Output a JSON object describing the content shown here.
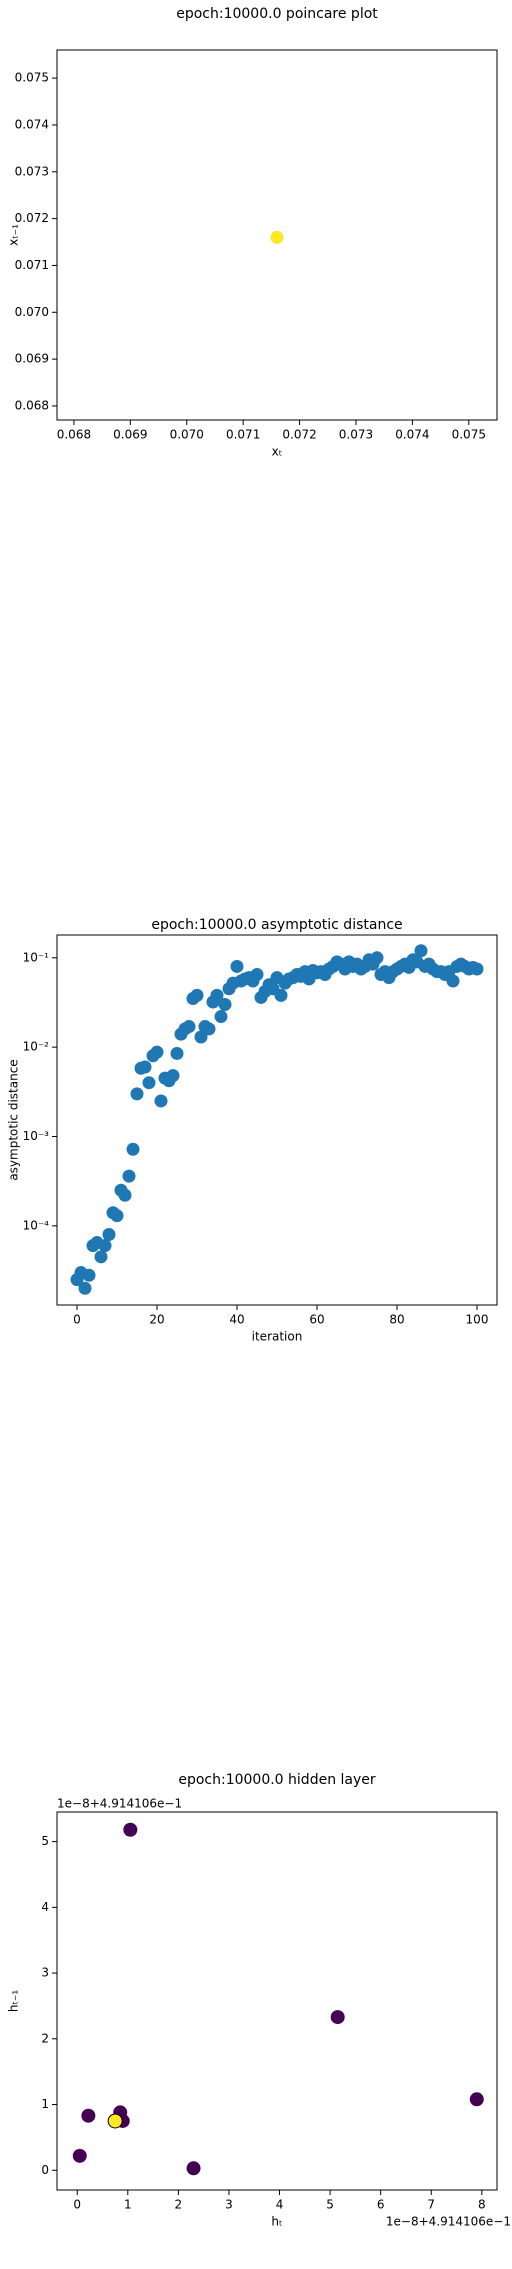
{
  "chart_data": [
    {
      "type": "scatter",
      "title": "epoch:10000.0 poincare plot",
      "x_label": "xₜ",
      "y_label": "xₜ₋₁",
      "x": [
        0.0716
      ],
      "y": [
        0.0716
      ],
      "color": "#fde725",
      "xlim": [
        0.0677,
        0.0755
      ],
      "ylim": [
        0.0677,
        0.0756
      ],
      "xticks": [
        0.068,
        0.069,
        {
          "value": 0.07,
          "label": "0.070"
        },
        0.071,
        0.072,
        0.073,
        0.074,
        0.075
      ],
      "yticks": [
        0.068,
        0.069,
        {
          "value": 0.07,
          "label": "0.070"
        },
        0.071,
        0.072,
        0.073,
        0.074,
        0.075
      ]
    },
    {
      "type": "scatter",
      "title": "epoch:10000.0 asymptotic distance",
      "x_label": "iteration",
      "y_label": "asymptotic distance",
      "log_y": true,
      "color": "#1f77b4",
      "x": [
        0,
        1,
        2,
        3,
        4,
        5,
        6,
        7,
        8,
        9,
        10,
        11,
        12,
        13,
        14,
        15,
        16,
        17,
        18,
        19,
        20,
        21,
        22,
        23,
        24,
        25,
        26,
        27,
        28,
        29,
        30,
        31,
        32,
        33,
        34,
        35,
        36,
        37,
        38,
        39,
        40,
        41,
        42,
        43,
        44,
        45,
        46,
        47,
        48,
        49,
        50,
        51,
        52,
        53,
        54,
        55,
        56,
        57,
        58,
        59,
        60,
        61,
        62,
        63,
        64,
        65,
        66,
        67,
        68,
        69,
        70,
        71,
        72,
        73,
        74,
        75,
        76,
        77,
        78,
        79,
        80,
        81,
        82,
        83,
        84,
        85,
        86,
        87,
        88,
        89,
        90,
        91,
        92,
        93,
        94,
        95,
        96,
        97,
        98,
        99,
        100
      ],
      "y": [
        2.5e-05,
        3e-05,
        2e-05,
        2.8e-05,
        6e-05,
        6.5e-05,
        4.5e-05,
        6e-05,
        8e-05,
        0.00014,
        0.00013,
        0.00025,
        0.00022,
        0.00036,
        0.00072,
        0.003,
        0.0058,
        0.006,
        0.004,
        0.008,
        0.0088,
        0.0025,
        0.0045,
        0.0042,
        0.0048,
        0.0085,
        0.014,
        0.016,
        0.017,
        0.035,
        0.038,
        0.013,
        0.017,
        0.016,
        0.032,
        0.038,
        0.022,
        0.03,
        0.045,
        0.052,
        0.08,
        0.055,
        0.058,
        0.06,
        0.055,
        0.065,
        0.036,
        0.042,
        0.05,
        0.045,
        0.06,
        0.038,
        0.052,
        0.058,
        0.06,
        0.065,
        0.062,
        0.07,
        0.058,
        0.072,
        0.068,
        0.07,
        0.065,
        0.075,
        0.08,
        0.09,
        0.085,
        0.075,
        0.09,
        0.08,
        0.085,
        0.075,
        0.08,
        0.095,
        0.085,
        0.1,
        0.065,
        0.07,
        0.06,
        0.07,
        0.075,
        0.08,
        0.085,
        0.078,
        0.095,
        0.09,
        0.12,
        0.08,
        0.085,
        0.075,
        0.07,
        0.07,
        0.065,
        0.07,
        0.055,
        0.08,
        0.085,
        0.08,
        0.075,
        0.078,
        0.075
      ],
      "xlim": [
        -5,
        105
      ],
      "ylim": [
        1.3e-05,
        0.18
      ],
      "xticks": [
        0,
        20,
        40,
        60,
        80,
        100
      ],
      "yticks": [
        {
          "value": 0.0001,
          "label": "10⁻⁴"
        },
        {
          "value": 0.001,
          "label": "10⁻³"
        },
        {
          "value": 0.01,
          "label": "10⁻²"
        },
        {
          "value": 0.1,
          "label": "10⁻¹"
        }
      ]
    },
    {
      "type": "scatter",
      "title": "epoch:10000.0 hidden layer",
      "x_label": "hₜ",
      "y_label": "hₜ₋₁",
      "x_offset": "1e−8+4.914106e−1",
      "y_offset": "1e−8+4.914106e−1",
      "x": [
        0.05,
        0.22,
        0.85,
        0.9,
        1.05,
        2.3,
        5.15,
        7.9,
        0.75
      ],
      "y": [
        0.22,
        0.83,
        0.88,
        0.75,
        5.18,
        0.03,
        2.33,
        1.08,
        0.75
      ],
      "colors": [
        "#440154",
        "#440154",
        "#440154",
        "#440154",
        "#440154",
        "#440154",
        "#440154",
        "#440154",
        "#fde725"
      ],
      "xlim": [
        -0.4,
        8.3
      ],
      "ylim": [
        -0.3,
        5.45
      ],
      "xticks": [
        0,
        1,
        2,
        3,
        4,
        5,
        6,
        7,
        8
      ],
      "yticks": [
        0,
        1,
        2,
        3,
        4,
        5
      ]
    }
  ]
}
